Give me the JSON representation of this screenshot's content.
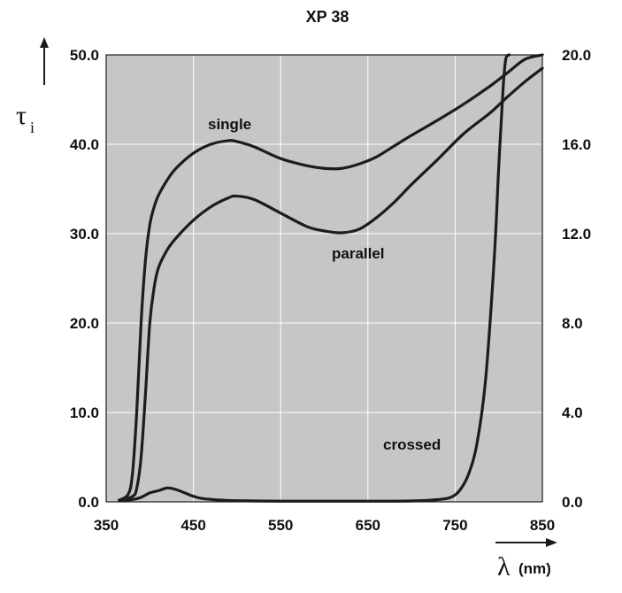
{
  "chart_data": {
    "type": "line",
    "title": "XP 38",
    "xlabel": "λ",
    "xlabel_unit": "(nm)",
    "ylabel": "τ",
    "ylabel_subscript": "i",
    "xlim": [
      350,
      850
    ],
    "ylim": [
      0,
      50
    ],
    "y2lim": [
      0,
      20
    ],
    "x_ticks": [
      "350",
      "450",
      "550",
      "650",
      "750",
      "850"
    ],
    "x_tick_values": [
      350,
      450,
      550,
      650,
      750,
      850
    ],
    "y_ticks": [
      "0.0",
      "10.0",
      "20.0",
      "30.0",
      "40.0",
      "50.0"
    ],
    "y_tick_values": [
      0,
      10,
      20,
      30,
      40,
      50
    ],
    "y2_ticks": [
      "0.0",
      "4.0",
      "8.0",
      "12.0",
      "16.0",
      "20.0"
    ],
    "y2_tick_values": [
      0,
      4,
      8,
      12,
      16,
      20
    ],
    "grid": true,
    "colors": {
      "plot_background": "#c6c6c6",
      "gridline": "#ffffff",
      "line": "#1c1c1c"
    },
    "series": [
      {
        "name": "single",
        "x": [
          365,
          375,
          380,
          385,
          390,
          395,
          400,
          405,
          410,
          420,
          430,
          450,
          470,
          490,
          500,
          520,
          550,
          580,
          600,
          620,
          640,
          660,
          680,
          700,
          730,
          760,
          790,
          810,
          830,
          850
        ],
        "y": [
          0.2,
          0.8,
          3,
          10,
          20,
          27,
          31,
          33,
          34.3,
          36,
          37.3,
          39,
          40,
          40.4,
          40.3,
          39.7,
          38.4,
          37.6,
          37.3,
          37.3,
          37.8,
          38.6,
          39.8,
          41,
          42.7,
          44.5,
          46.5,
          48,
          49.5,
          50
        ]
      },
      {
        "name": "parallel",
        "x": [
          365,
          380,
          385,
          390,
          395,
          400,
          405,
          410,
          420,
          430,
          450,
          470,
          490,
          500,
          520,
          550,
          580,
          600,
          620,
          640,
          660,
          680,
          700,
          730,
          760,
          790,
          810,
          830,
          850
        ],
        "y": [
          0.2,
          0.6,
          1.5,
          5,
          12,
          20,
          24,
          26.2,
          28.2,
          29.5,
          31.5,
          33,
          34,
          34.2,
          33.8,
          32.3,
          30.8,
          30.3,
          30.1,
          30.5,
          31.8,
          33.5,
          35.5,
          38.3,
          41.2,
          43.5,
          45.3,
          47,
          48.5
        ]
      },
      {
        "name": "crossed",
        "x": [
          365,
          380,
          390,
          400,
          410,
          420,
          430,
          440,
          450,
          460,
          480,
          500,
          550,
          600,
          650,
          700,
          730,
          745,
          755,
          765,
          775,
          785,
          795,
          800,
          805,
          808,
          812
        ],
        "y": [
          0.05,
          0.1,
          0.2,
          0.4,
          0.5,
          0.62,
          0.55,
          0.4,
          0.25,
          0.15,
          0.08,
          0.05,
          0.03,
          0.03,
          0.03,
          0.04,
          0.1,
          0.2,
          0.5,
          1.2,
          2.6,
          5.5,
          11,
          15,
          18.5,
          19.8,
          20
        ]
      }
    ],
    "annotations": [
      "single",
      "parallel",
      "crossed"
    ]
  }
}
